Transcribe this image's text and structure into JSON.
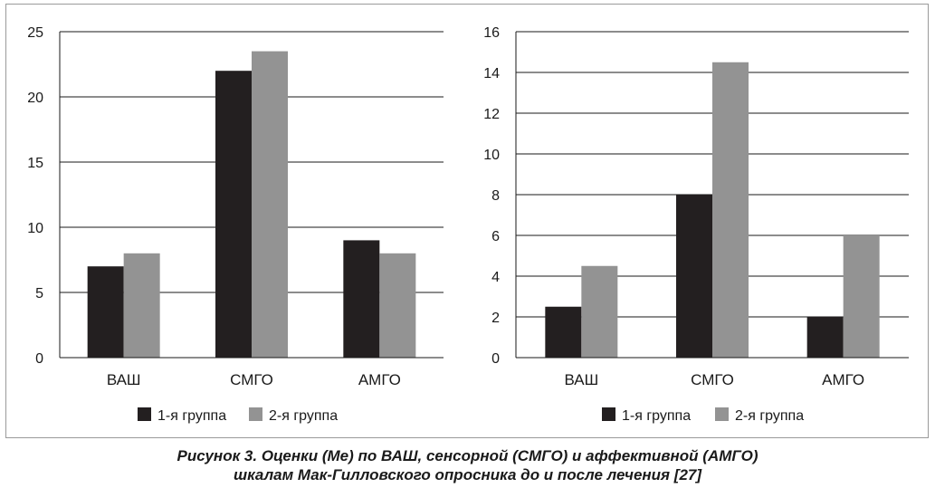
{
  "chart_data": [
    {
      "type": "bar",
      "categories": [
        "ВАШ",
        "СМГО",
        "АМГО"
      ],
      "series": [
        {
          "name": "1-я группа",
          "values": [
            7,
            22,
            9
          ],
          "color": "#231f20"
        },
        {
          "name": "2-я группа",
          "values": [
            8,
            23.5,
            8
          ],
          "color": "#939393"
        }
      ],
      "ylim": [
        0,
        25
      ],
      "yticks": [
        "0",
        "5",
        "10",
        "15",
        "20",
        "25"
      ],
      "grid": true,
      "legend": "bottom"
    },
    {
      "type": "bar",
      "categories": [
        "ВАШ",
        "СМГО",
        "АМГО"
      ],
      "series": [
        {
          "name": "1-я группа",
          "values": [
            2.5,
            8,
            2
          ],
          "color": "#231f20"
        },
        {
          "name": "2-я группа",
          "values": [
            4.5,
            14.5,
            6
          ],
          "color": "#939393"
        }
      ],
      "ylim": [
        0,
        16
      ],
      "yticks": [
        "0",
        "2",
        "4",
        "6",
        "8",
        "10",
        "12",
        "14",
        "16"
      ],
      "grid": true,
      "legend": "bottom"
    }
  ],
  "caption": {
    "line1": "Рисунок 3. Оценки (Ме) по ВАШ, сенсорной (СМГО) и аффективной (АМГО)",
    "line2": "шкалам Мак-Гилловского опросника до и после лечения [27]"
  }
}
